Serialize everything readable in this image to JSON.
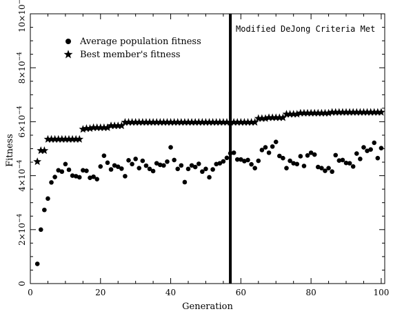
{
  "chart_data": {
    "type": "scatter",
    "xlabel": "Generation",
    "ylabel": "Fitness",
    "xlim": [
      0,
      101
    ],
    "ylim": [
      0,
      0.001
    ],
    "y_scale_exponent": -4,
    "x_ticks": [
      {
        "value": 0,
        "label": "0"
      },
      {
        "value": 20,
        "label": "20"
      },
      {
        "value": 40,
        "label": "40"
      },
      {
        "value": 60,
        "label": "60"
      },
      {
        "value": 80,
        "label": "80"
      },
      {
        "value": 100,
        "label": "100"
      }
    ],
    "y_ticks": [
      {
        "value": 0,
        "label": "0"
      },
      {
        "value": 0.0002,
        "mant": "2",
        "exp": "−4"
      },
      {
        "value": 0.0004,
        "mant": "4",
        "exp": "−4"
      },
      {
        "value": 0.0006,
        "mant": "6",
        "exp": "−4"
      },
      {
        "value": 0.0008,
        "mant": "8",
        "exp": "−4"
      },
      {
        "value": 0.001,
        "mant": "10",
        "exp": "−3"
      }
    ],
    "legend": {
      "placement": "top-left"
    },
    "annotation": {
      "x": 57,
      "text": "Modified DeJong Criteria Met"
    },
    "series": [
      {
        "name": "Average population fitness",
        "marker": "circle",
        "x": [
          2,
          3,
          4,
          5,
          6,
          7,
          8,
          9,
          10,
          11,
          12,
          13,
          14,
          15,
          16,
          17,
          18,
          19,
          20,
          21,
          22,
          23,
          24,
          25,
          26,
          27,
          28,
          29,
          30,
          31,
          32,
          33,
          34,
          35,
          36,
          37,
          38,
          39,
          40,
          41,
          42,
          43,
          44,
          45,
          46,
          47,
          48,
          49,
          50,
          51,
          52,
          53,
          54,
          55,
          56,
          57,
          58,
          59,
          60,
          61,
          62,
          63,
          64,
          65,
          66,
          67,
          68,
          69,
          70,
          71,
          72,
          73,
          74,
          75,
          76,
          77,
          78,
          79,
          80,
          81,
          82,
          83,
          84,
          85,
          86,
          87,
          88,
          89,
          90,
          91,
          92,
          93,
          94,
          95,
          96,
          97,
          98,
          99,
          100
        ],
        "values": [
          7.3e-05,
          0.0002,
          0.000273,
          0.000315,
          0.000375,
          0.000395,
          0.00042,
          0.000415,
          0.000443,
          0.000422,
          0.0004,
          0.000398,
          0.000394,
          0.00042,
          0.000418,
          0.000392,
          0.000396,
          0.000387,
          0.000434,
          0.000474,
          0.000448,
          0.000423,
          0.000438,
          0.000433,
          0.000426,
          0.000398,
          0.000457,
          0.000443,
          0.000462,
          0.000428,
          0.000455,
          0.000437,
          0.000425,
          0.000417,
          0.000446,
          0.00044,
          0.000438,
          0.000452,
          0.000505,
          0.000458,
          0.000425,
          0.000438,
          0.000376,
          0.000425,
          0.000438,
          0.000432,
          0.000444,
          0.000415,
          0.000425,
          0.000394,
          0.000423,
          0.000443,
          0.000446,
          0.000453,
          0.000466,
          0.000483,
          0.000485,
          0.00046,
          0.00046,
          0.000454,
          0.000458,
          0.000442,
          0.000428,
          0.000455,
          0.000495,
          0.000505,
          0.000485,
          0.000508,
          0.000525,
          0.000473,
          0.000465,
          0.000428,
          0.000455,
          0.000446,
          0.000443,
          0.000472,
          0.000436,
          0.000475,
          0.000485,
          0.000478,
          0.000432,
          0.000428,
          0.000418,
          0.000428,
          0.000415,
          0.000476,
          0.000456,
          0.000458,
          0.000447,
          0.000446,
          0.000434,
          0.000482,
          0.000462,
          0.000505,
          0.000492,
          0.000497,
          0.000522,
          0.000465,
          0.000502
        ]
      },
      {
        "name": "Best member's fitness",
        "marker": "star",
        "x": [
          2,
          3,
          4,
          5,
          6,
          7,
          8,
          9,
          10,
          11,
          12,
          13,
          14,
          15,
          16,
          17,
          18,
          19,
          20,
          21,
          22,
          23,
          24,
          25,
          26,
          27,
          28,
          29,
          30,
          31,
          32,
          33,
          34,
          35,
          36,
          37,
          38,
          39,
          40,
          41,
          42,
          43,
          44,
          45,
          46,
          47,
          48,
          49,
          50,
          51,
          52,
          53,
          54,
          55,
          56,
          57,
          58,
          59,
          60,
          61,
          62,
          63,
          64,
          65,
          66,
          67,
          68,
          69,
          70,
          71,
          72,
          73,
          74,
          75,
          76,
          77,
          78,
          79,
          80,
          81,
          82,
          83,
          84,
          85,
          86,
          87,
          88,
          89,
          90,
          91,
          92,
          93,
          94,
          95,
          96,
          97,
          98,
          99,
          100
        ],
        "values": [
          0.000452,
          0.000493,
          0.000493,
          0.000535,
          0.000535,
          0.000535,
          0.000535,
          0.000535,
          0.000535,
          0.000535,
          0.000535,
          0.000535,
          0.000535,
          0.000572,
          0.000575,
          0.000575,
          0.000578,
          0.000578,
          0.000578,
          0.000578,
          0.000578,
          0.000585,
          0.000585,
          0.000585,
          0.000585,
          0.000598,
          0.000598,
          0.000598,
          0.000598,
          0.000598,
          0.000598,
          0.000598,
          0.000598,
          0.000598,
          0.000598,
          0.000598,
          0.000598,
          0.000598,
          0.000598,
          0.000598,
          0.000598,
          0.000598,
          0.000598,
          0.000598,
          0.000598,
          0.000598,
          0.000598,
          0.000598,
          0.000598,
          0.000598,
          0.000598,
          0.000598,
          0.000598,
          0.000598,
          0.000598,
          0.000598,
          0.000598,
          0.000598,
          0.000598,
          0.000598,
          0.000598,
          0.000598,
          0.000598,
          0.000612,
          0.000612,
          0.000612,
          0.000615,
          0.000615,
          0.000615,
          0.000615,
          0.000615,
          0.000628,
          0.000628,
          0.000628,
          0.000628,
          0.000632,
          0.000632,
          0.000632,
          0.000632,
          0.000632,
          0.000632,
          0.000632,
          0.000632,
          0.000632,
          0.000635,
          0.000635,
          0.000635,
          0.000635,
          0.000635,
          0.000635,
          0.000635,
          0.000635,
          0.000635,
          0.000635,
          0.000635,
          0.000635,
          0.000635,
          0.000635,
          0.000635
        ]
      }
    ]
  }
}
